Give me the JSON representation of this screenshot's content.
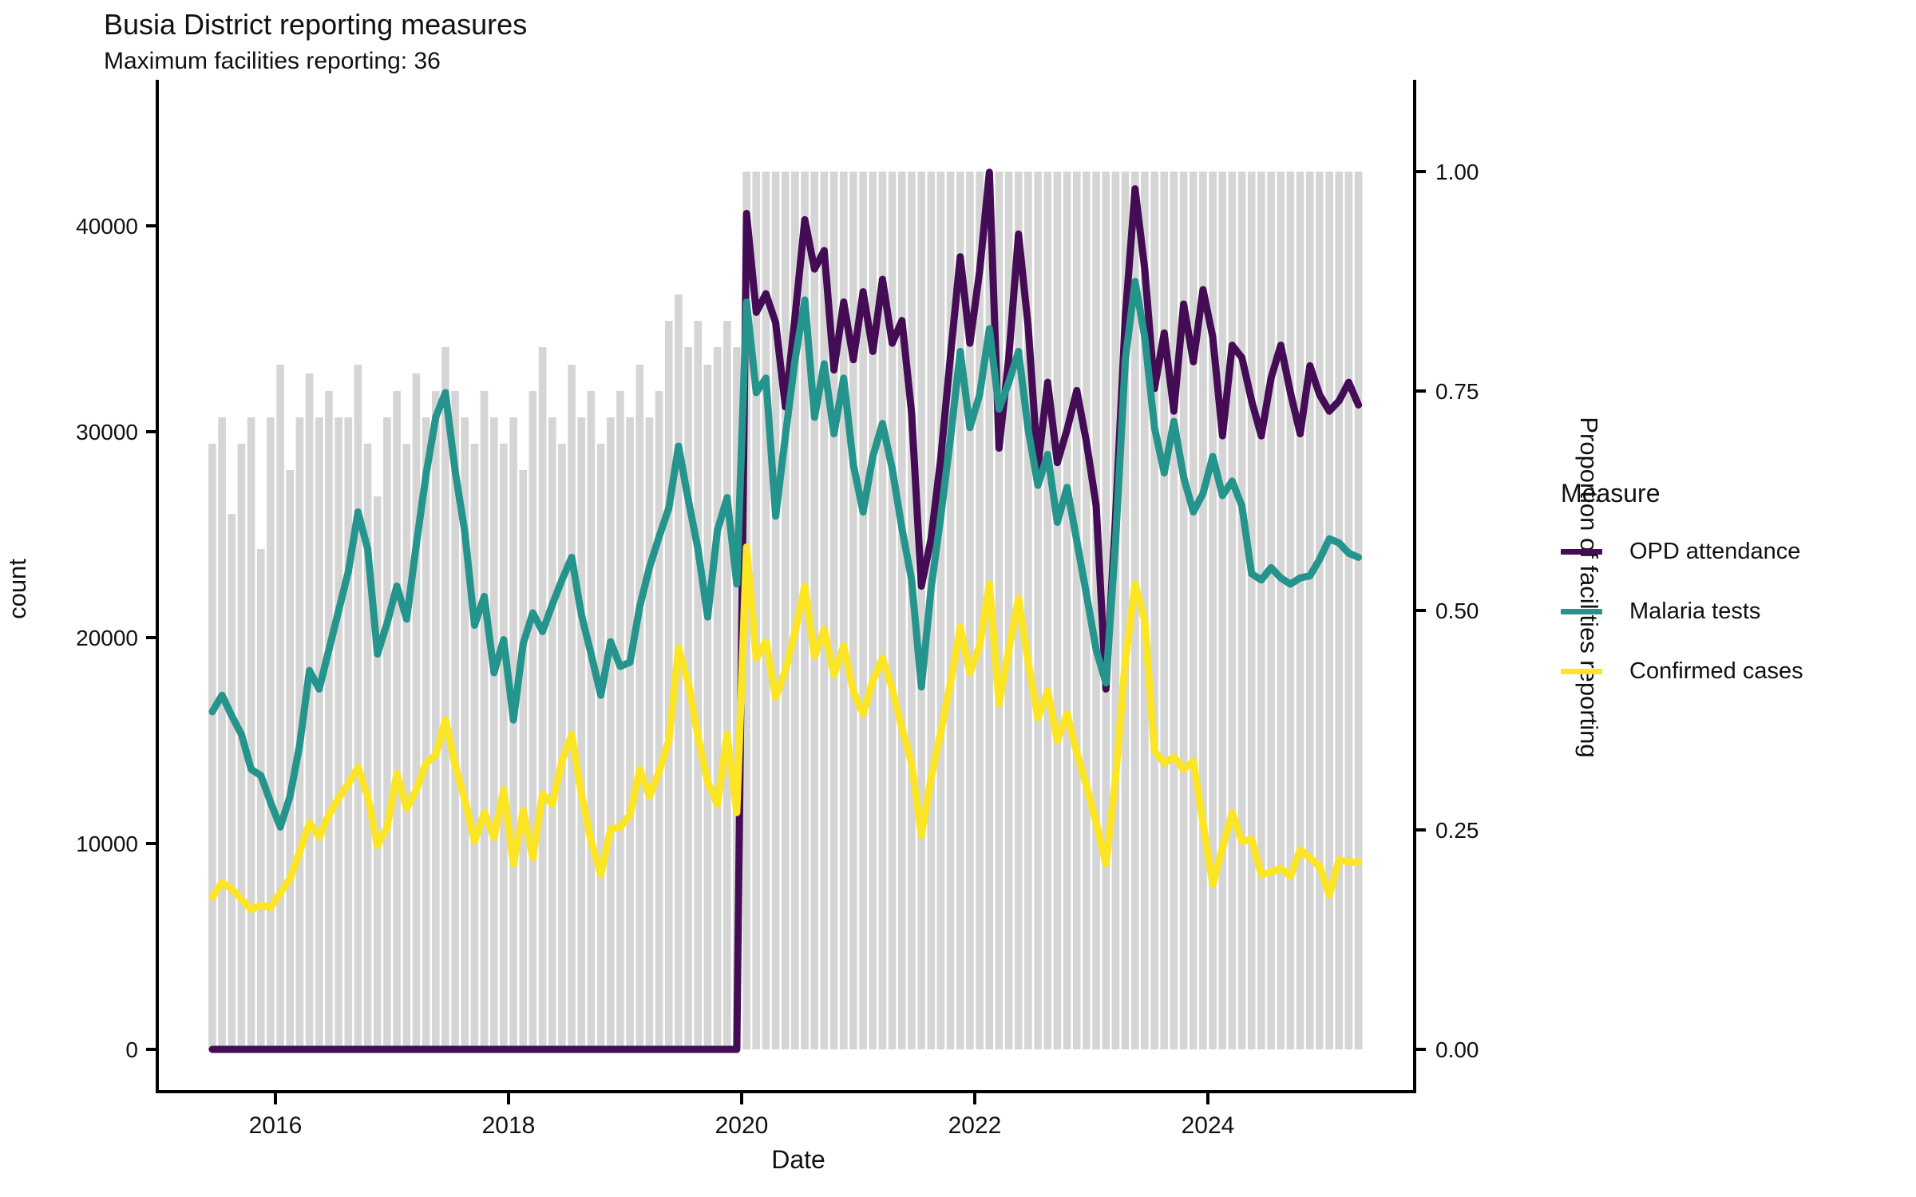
{
  "title": "Busia District reporting measures",
  "subtitle": "Maximum facilities reporting: 36",
  "axes": {
    "left_label": "count",
    "right_label": "Proportion of facilities reporting",
    "x_label": "Date",
    "left_ticks": [
      0,
      10000,
      20000,
      30000,
      40000
    ],
    "right_ticks": [
      "0.00",
      "0.25",
      "0.50",
      "0.75",
      "1.00"
    ],
    "x_ticks": [
      2016,
      2018,
      2020,
      2022,
      2024
    ]
  },
  "legend": {
    "title": "Measure",
    "items": [
      {
        "label": "OPD attendance",
        "color": "#440C54"
      },
      {
        "label": "Malaria tests",
        "color": "#25948C"
      },
      {
        "label": "Confirmed cases",
        "color": "#FCE525"
      }
    ]
  },
  "colors": {
    "bar_fill": "#D5D5D5",
    "axis_line": "#000000",
    "text": "#111111",
    "background": "#FFFFFF"
  },
  "chart_data": {
    "type": "line",
    "frequency": "monthly",
    "start_month": "2015-06",
    "n_points": 119,
    "x_axis_years": [
      2016,
      2018,
      2020,
      2022,
      2024
    ],
    "count_axis_range": [
      0,
      43000
    ],
    "proportion_axis_range": [
      0,
      1
    ],
    "grid": "off",
    "legend_position": "right",
    "series": [
      {
        "name": "OPD attendance",
        "color": "#440C54",
        "values": [
          0,
          0,
          0,
          0,
          0,
          0,
          0,
          0,
          0,
          0,
          0,
          0,
          0,
          0,
          0,
          0,
          0,
          0,
          0,
          0,
          0,
          0,
          0,
          0,
          0,
          0,
          0,
          0,
          0,
          0,
          0,
          0,
          0,
          0,
          0,
          0,
          0,
          0,
          0,
          0,
          0,
          0,
          0,
          0,
          0,
          0,
          0,
          0,
          0,
          0,
          0,
          0,
          0,
          0,
          0,
          40600,
          35800,
          36700,
          35300,
          31200,
          35600,
          40300,
          37900,
          38800,
          33000,
          36300,
          33500,
          36800,
          33900,
          37400,
          34300,
          35400,
          30900,
          22500,
          24800,
          28700,
          33700,
          38500,
          34300,
          37800,
          42600,
          29200,
          33600,
          39600,
          35100,
          28300,
          32400,
          28500,
          30100,
          32000,
          29500,
          26400,
          17500,
          25900,
          35600,
          41800,
          37900,
          32100,
          34800,
          31000,
          36200,
          33400,
          36900,
          34600,
          29800,
          34200,
          33600,
          31500,
          29800,
          32600,
          34200,
          31900,
          29900,
          33200,
          31800,
          31000,
          31500,
          32400,
          31300
        ]
      },
      {
        "name": "Malaria tests",
        "color": "#25948C",
        "values": [
          16400,
          17200,
          16200,
          15300,
          13600,
          13300,
          12000,
          10800,
          12300,
          14800,
          18400,
          17500,
          19400,
          21300,
          23200,
          26100,
          24300,
          19200,
          20700,
          22500,
          20900,
          24500,
          27900,
          30700,
          31900,
          28100,
          25100,
          20600,
          22000,
          18300,
          19900,
          16000,
          19700,
          21200,
          20300,
          21600,
          22800,
          23900,
          21100,
          19200,
          17200,
          19800,
          18600,
          18800,
          21500,
          23400,
          24900,
          26300,
          29300,
          26700,
          24300,
          21000,
          25200,
          26800,
          22600,
          36300,
          31900,
          32600,
          25900,
          29800,
          33500,
          36400,
          30700,
          33300,
          29900,
          32600,
          28400,
          26100,
          28800,
          30400,
          28200,
          25300,
          22800,
          17600,
          22400,
          25900,
          29700,
          33900,
          30200,
          31800,
          35000,
          31100,
          32400,
          33900,
          30100,
          27400,
          28900,
          25600,
          27300,
          24700,
          22100,
          19400,
          17800,
          24700,
          33500,
          37300,
          34600,
          30200,
          28000,
          30500,
          27800,
          26100,
          27000,
          28800,
          26900,
          27600,
          26400,
          23100,
          22800,
          23400,
          22900,
          22600,
          22900,
          23000,
          23800,
          24800,
          24600,
          24100,
          23900
        ]
      },
      {
        "name": "Confirmed cases",
        "color": "#FCE525",
        "values": [
          7400,
          8100,
          7800,
          7300,
          6800,
          7000,
          6900,
          7600,
          8300,
          9600,
          11000,
          10300,
          11400,
          12200,
          12900,
          13700,
          12300,
          9900,
          10800,
          13400,
          11700,
          12600,
          13900,
          14300,
          16000,
          13800,
          12100,
          10100,
          11500,
          10300,
          12600,
          9000,
          11600,
          9300,
          12400,
          11900,
          14000,
          15300,
          12400,
          10100,
          8500,
          10700,
          10800,
          11400,
          13600,
          12300,
          13500,
          15000,
          19500,
          17800,
          15200,
          13000,
          11900,
          15300,
          11500,
          24400,
          19000,
          19800,
          17100,
          18400,
          20300,
          22500,
          19100,
          20400,
          18200,
          19600,
          17400,
          16300,
          17900,
          19000,
          17500,
          15600,
          13900,
          10400,
          13200,
          15400,
          17800,
          20500,
          18300,
          19600,
          22600,
          16800,
          19400,
          21900,
          18800,
          16100,
          17400,
          15000,
          16300,
          14400,
          12800,
          11000,
          9000,
          13200,
          18900,
          22600,
          20800,
          14500,
          13900,
          14200,
          13600,
          14000,
          11000,
          8000,
          9800,
          11500,
          10100,
          10200,
          8500,
          8600,
          8800,
          8400,
          9700,
          9300,
          8900,
          7500,
          9200,
          9100,
          9100
        ]
      }
    ],
    "bars": {
      "name": "Proportion of facilities reporting",
      "color": "#D5D5D5",
      "values": [
        0.69,
        0.72,
        0.61,
        0.69,
        0.72,
        0.57,
        0.72,
        0.78,
        0.66,
        0.72,
        0.77,
        0.72,
        0.75,
        0.72,
        0.72,
        0.78,
        0.69,
        0.63,
        0.72,
        0.75,
        0.69,
        0.77,
        0.72,
        0.75,
        0.8,
        0.75,
        0.72,
        0.69,
        0.75,
        0.72,
        0.69,
        0.72,
        0.66,
        0.75,
        0.8,
        0.72,
        0.69,
        0.78,
        0.72,
        0.75,
        0.69,
        0.72,
        0.75,
        0.72,
        0.78,
        0.72,
        0.75,
        0.83,
        0.86,
        0.8,
        0.83,
        0.78,
        0.8,
        0.83,
        0.8,
        1,
        1,
        1,
        1,
        1,
        1,
        1,
        1,
        1,
        1,
        1,
        1,
        1,
        1,
        1,
        1,
        1,
        1,
        1,
        1,
        1,
        1,
        1,
        1,
        1,
        1,
        1,
        1,
        1,
        1,
        1,
        1,
        1,
        1,
        1,
        1,
        1,
        1,
        1,
        1,
        1,
        1,
        1,
        1,
        1,
        1,
        1,
        1,
        1,
        1,
        1,
        1,
        1,
        1,
        1,
        1,
        1,
        1,
        1,
        1,
        1,
        1,
        1,
        1
      ]
    }
  }
}
